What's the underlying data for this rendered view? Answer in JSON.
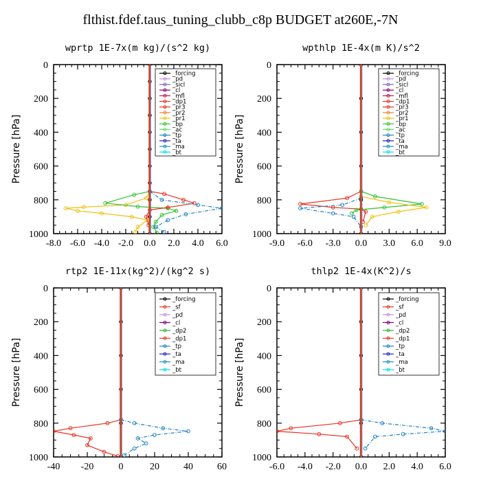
{
  "title": "flthist.fdef.taus_tuning_clubb_c8p  BUDGET at260E,-7N",
  "colors": {
    "forcing": "#000000",
    "pd": "#c090d8",
    "sicl": "#8060c0",
    "cl": "#7a0070",
    "mfl": "#c01050",
    "dp1": "#e83020",
    "pr3": "#e83020",
    "pr2": "#f08020",
    "pr1": "#f0c010",
    "bp": "#30c030",
    "ac": "#60e060",
    "tp": "#2080c0",
    "ta": "#2020c0",
    "ma": "#2090c0",
    "bt": "#00e0e0",
    "sf": "#e04020",
    "dp2": "#30b030"
  },
  "chart_data": [
    {
      "type": "line",
      "title": "wprtp   1E-7x(m kg)/(s^2 kg)",
      "ylabel": "Pressure [hPa]",
      "xlim": [
        -8,
        6
      ],
      "ylim": [
        1000,
        0
      ],
      "xticks": [
        "-8.0",
        "-6.0",
        "-4.0",
        "-2.0",
        "0.0",
        "2.0",
        "4.0",
        "6.0"
      ],
      "yticks": [
        "0",
        "200",
        "400",
        "600",
        "800",
        "1000"
      ],
      "legend": [
        "_forcing",
        "_pd",
        "_sicl",
        "_cl",
        "_mfl",
        "_dp1",
        "_pr3",
        "_pr2",
        "_pr1",
        "_bp",
        "_ac",
        "_tp",
        "_ta",
        "_ma",
        "_bt"
      ],
      "series": [
        {
          "name": "_pr1",
          "values": [
            [
              0,
              750
            ],
            [
              -0.3,
              790
            ],
            [
              -2,
              830
            ],
            [
              -5.5,
              843
            ],
            [
              -7,
              850
            ],
            [
              -6,
              865
            ],
            [
              -4,
              880
            ],
            [
              -1.5,
              900
            ],
            [
              -0.2,
              920
            ],
            [
              -1,
              960
            ],
            [
              -1.2,
              990
            ]
          ]
        },
        {
          "name": "_bp",
          "values": [
            [
              0,
              750
            ],
            [
              -1.3,
              770
            ],
            [
              -3.7,
              820
            ],
            [
              -1,
              840
            ],
            [
              1.5,
              850
            ],
            [
              2.2,
              865
            ],
            [
              1,
              890
            ],
            [
              0.5,
              930
            ],
            [
              0.3,
              960
            ],
            [
              0.6,
              995
            ]
          ]
        },
        {
          "name": "_dp1",
          "values": [
            [
              0,
              750
            ],
            [
              1.2,
              765
            ],
            [
              2.8,
              800
            ],
            [
              3.7,
              820
            ],
            [
              1.5,
              845
            ],
            [
              0,
              860
            ],
            [
              -0.3,
              900
            ],
            [
              -0.1,
              950
            ]
          ]
        },
        {
          "name": "_tp",
          "values": [
            [
              0,
              750
            ],
            [
              1,
              800
            ],
            [
              4,
              830
            ],
            [
              6,
              850
            ],
            [
              3,
              885
            ],
            [
              1.5,
              920
            ],
            [
              0.5,
              960
            ],
            [
              1.2,
              990
            ]
          ]
        },
        {
          "name": "_forcing",
          "values": [
            [
              0,
              0
            ],
            [
              0,
              100
            ],
            [
              0,
              200
            ],
            [
              0,
              300
            ],
            [
              0,
              400
            ],
            [
              0,
              500
            ],
            [
              0,
              600
            ],
            [
              0,
              700
            ],
            [
              0,
              800
            ],
            [
              0,
              900
            ],
            [
              0,
              1000
            ]
          ]
        }
      ]
    },
    {
      "type": "line",
      "title": "wpthlp   1E-4x(m K)/s^2",
      "ylabel": "Pressure [hPa]",
      "xlim": [
        -9,
        9
      ],
      "ylim": [
        1000,
        0
      ],
      "xticks": [
        "-9.0",
        "-6.0",
        "-3.0",
        "0.0",
        "3.0",
        "6.0",
        "9.0"
      ],
      "yticks": [
        "0",
        "200",
        "400",
        "600",
        "800",
        "1000"
      ],
      "legend": [
        "_forcing",
        "_pd",
        "_sicl",
        "_cl",
        "_mfl",
        "_dp1",
        "_pr3",
        "_pr2",
        "_pr1",
        "_bp",
        "_ac",
        "_tp",
        "_ta",
        "_ma",
        "_bt"
      ],
      "series": [
        {
          "name": "_dp1",
          "values": [
            [
              0,
              750
            ],
            [
              -1.5,
              790
            ],
            [
              -6.5,
              825
            ],
            [
              -3,
              845
            ],
            [
              0,
              855
            ],
            [
              0.5,
              870
            ],
            [
              0.2,
              930
            ]
          ]
        },
        {
          "name": "_bp",
          "values": [
            [
              0,
              750
            ],
            [
              1.5,
              780
            ],
            [
              6.5,
              825
            ],
            [
              2.5,
              845
            ],
            [
              -0.5,
              860
            ],
            [
              -1,
              880
            ]
          ]
        },
        {
          "name": "_pr1",
          "values": [
            [
              0,
              780
            ],
            [
              3,
              815
            ],
            [
              7,
              845
            ],
            [
              4,
              870
            ],
            [
              1.2,
              900
            ],
            [
              0.5,
              950
            ]
          ]
        },
        {
          "name": "_tp",
          "values": [
            [
              0,
              790
            ],
            [
              -2,
              830
            ],
            [
              -6.5,
              850
            ],
            [
              -3,
              880
            ],
            [
              -0.8,
              900
            ],
            [
              0,
              960
            ]
          ]
        },
        {
          "name": "_forcing",
          "values": [
            [
              0,
              0
            ],
            [
              0,
              200
            ],
            [
              0,
              400
            ],
            [
              0,
              600
            ],
            [
              0,
              800
            ],
            [
              0,
              1000
            ]
          ]
        }
      ]
    },
    {
      "type": "line",
      "title": "rtp2   1E-11x(kg^2)/(kg^2 s)",
      "ylabel": "Pressure [hPa]",
      "xlim": [
        -40,
        60
      ],
      "ylim": [
        1000,
        0
      ],
      "xticks": [
        "-40",
        "-20",
        "0",
        "20",
        "40",
        "60"
      ],
      "yticks": [
        "0",
        "200",
        "400",
        "600",
        "800",
        "1000"
      ],
      "legend": [
        "_forcing",
        "_sf",
        "_pd",
        "_cl",
        "_dp2",
        "_dp1",
        "_tp",
        "_ta",
        "_ma",
        "_bt"
      ],
      "series": [
        {
          "name": "_dp1",
          "values": [
            [
              0,
              780
            ],
            [
              -8,
              800
            ],
            [
              -30,
              830
            ],
            [
              -40,
              848
            ],
            [
              -28,
              870
            ],
            [
              -18,
              890
            ],
            [
              -20,
              930
            ],
            [
              -10,
              970
            ],
            [
              -2,
              995
            ]
          ]
        },
        {
          "name": "_tp",
          "values": [
            [
              0,
              780
            ],
            [
              8,
              800
            ],
            [
              25,
              830
            ],
            [
              40,
              848
            ],
            [
              20,
              870
            ],
            [
              10,
              890
            ],
            [
              15,
              920
            ],
            [
              8,
              950
            ],
            [
              2,
              990
            ]
          ]
        },
        {
          "name": "_forcing",
          "values": [
            [
              0,
              0
            ],
            [
              0,
              200
            ],
            [
              0,
              400
            ],
            [
              0,
              600
            ],
            [
              0,
              800
            ],
            [
              0,
              1000
            ]
          ]
        }
      ]
    },
    {
      "type": "line",
      "title": "thlp2   1E-4x(K^2)/s",
      "ylabel": "Pressure [hPa]",
      "xlim": [
        -6,
        6
      ],
      "ylim": [
        1000,
        0
      ],
      "xticks": [
        "-6.0",
        "-4.0",
        "-2.0",
        "0.0",
        "2.0",
        "4.0",
        "6.0"
      ],
      "yticks": [
        "0",
        "200",
        "400",
        "600",
        "800",
        "1000"
      ],
      "legend": [
        "_forcing",
        "_sf",
        "_pd",
        "_cl",
        "_dp2",
        "_dp1",
        "_tp",
        "_ta",
        "_ma",
        "_bt"
      ],
      "series": [
        {
          "name": "_dp1",
          "values": [
            [
              0,
              780
            ],
            [
              -1.5,
              800
            ],
            [
              -5,
              830
            ],
            [
              -6,
              848
            ],
            [
              -3,
              865
            ],
            [
              -1,
              880
            ],
            [
              -0.3,
              950
            ]
          ]
        },
        {
          "name": "_tp",
          "values": [
            [
              0,
              780
            ],
            [
              1.5,
              800
            ],
            [
              5,
              830
            ],
            [
              6,
              848
            ],
            [
              3,
              865
            ],
            [
              1,
              880
            ],
            [
              0.3,
              950
            ]
          ]
        },
        {
          "name": "_forcing",
          "values": [
            [
              0,
              0
            ],
            [
              0,
              200
            ],
            [
              0,
              400
            ],
            [
              0,
              600
            ],
            [
              0,
              800
            ],
            [
              0,
              1000
            ]
          ]
        }
      ]
    }
  ]
}
